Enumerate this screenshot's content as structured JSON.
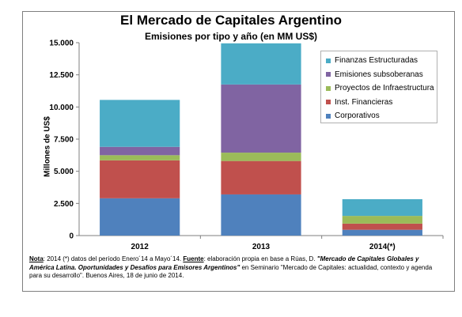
{
  "chart_data": {
    "type": "bar",
    "stacked": true,
    "title": "El Mercado de Capitales Argentino",
    "subtitle": "Emisiones por tipo y año (en MM US$)",
    "xlabel": "",
    "ylabel": "Millones de US$",
    "categories": [
      "2012",
      "2013",
      "2014(*)"
    ],
    "ylim": [
      0,
      15000
    ],
    "yticks": [
      "0",
      "2.500",
      "5.000",
      "7.500",
      "10.000",
      "12.500",
      "15.000"
    ],
    "ytick_values": [
      0,
      2500,
      5000,
      7500,
      10000,
      12500,
      15000
    ],
    "legend_position": "top-right",
    "grid": false,
    "series": [
      {
        "name": "Corporativos",
        "color": "#4f81bd",
        "values": [
          2900,
          3200,
          450
        ]
      },
      {
        "name": "Inst. Financieras",
        "color": "#c0504d",
        "values": [
          2950,
          2600,
          480
        ]
      },
      {
        "name": "Proyectos de Infraestructura",
        "color": "#9bbb59",
        "values": [
          400,
          650,
          600
        ]
      },
      {
        "name": "Emisiones subsoberanas",
        "color": "#8064a2",
        "values": [
          650,
          5300,
          0
        ]
      },
      {
        "name": "Finanzas Estructuradas",
        "color": "#4bacc6",
        "values": [
          3650,
          3200,
          1300
        ]
      }
    ]
  },
  "note": {
    "label": "Nota",
    "text1": ": 2014 (*) datos del período Enero´14 a Mayo´14. ",
    "label2": "Fuente",
    "text2": ": elaboración propia en base a Rúas, D. ",
    "italic": "\"Mercado de Capitales Globales y América Latina. Oportunidades y Desafíos para Emisores Argentinos\"",
    "text3": " en Seminario \"Mercado de Capitales: actualidad, contexto y agenda para su desarrollo\". Buenos Aires, 18 de junio de 2014."
  }
}
